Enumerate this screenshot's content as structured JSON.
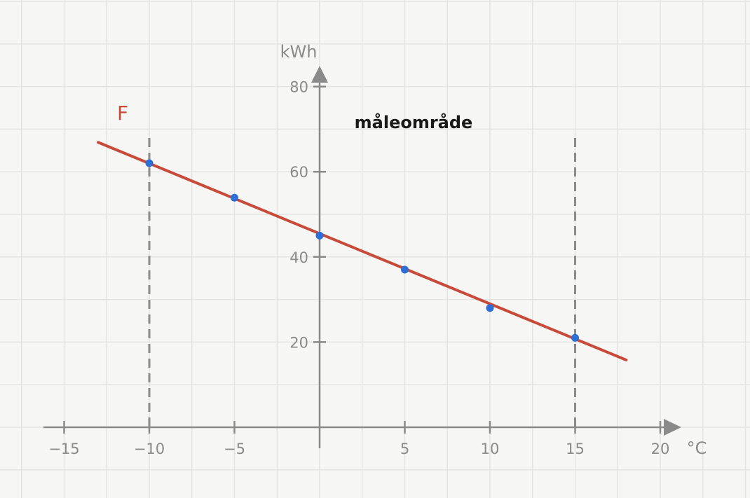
{
  "chart_data": {
    "type": "line",
    "xlabel": "°C",
    "ylabel": "kWh",
    "xlim": [
      -16,
      21
    ],
    "ylim": [
      -5,
      82
    ],
    "x_ticks": [
      {
        "value": -15,
        "label": "−15"
      },
      {
        "value": -10,
        "label": "−10"
      },
      {
        "value": -5,
        "label": "−5"
      },
      {
        "value": 5,
        "label": "5"
      },
      {
        "value": 10,
        "label": "10"
      },
      {
        "value": 15,
        "label": "15"
      },
      {
        "value": 20,
        "label": "20"
      }
    ],
    "y_ticks": [
      {
        "value": 20,
        "label": "20"
      },
      {
        "value": 40,
        "label": "40"
      },
      {
        "value": 60,
        "label": "60"
      },
      {
        "value": 80,
        "label": "80"
      }
    ],
    "grid": true,
    "series": [
      {
        "name": "F",
        "kind": "line",
        "color": "#c84b3a",
        "x": [
          -13,
          18
        ],
        "y": [
          66.9,
          15.8
        ]
      },
      {
        "kind": "scatter",
        "color": "#2e6fd6",
        "x": [
          -10,
          -5,
          0,
          5,
          10,
          15
        ],
        "y": [
          62,
          53.9,
          45,
          37,
          28,
          21
        ]
      }
    ],
    "measurement_range": {
      "label": "måleområde",
      "x_from": -10,
      "x_to": 15,
      "line_color": "#8a8a8a"
    }
  }
}
